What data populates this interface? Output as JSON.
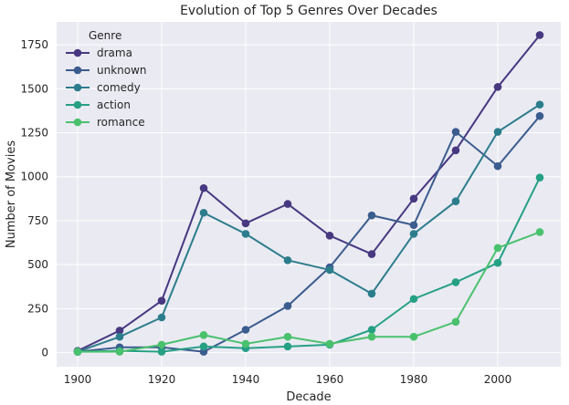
{
  "chart_data": {
    "type": "line",
    "title": "Evolution of Top 5 Genres Over Decades",
    "xlabel": "Decade",
    "ylabel": "Number of Movies",
    "x": [
      1900,
      1910,
      1920,
      1930,
      1940,
      1950,
      1960,
      1970,
      1980,
      1990,
      2000,
      2010
    ],
    "xlim": [
      1895,
      2015
    ],
    "ylim": [
      -80,
      1880
    ],
    "xticks": [
      1900,
      1920,
      1940,
      1960,
      1980,
      2000
    ],
    "yticks": [
      0,
      250,
      500,
      750,
      1000,
      1250,
      1500,
      1750
    ],
    "grid": true,
    "legend": {
      "title": "Genre",
      "placement": "top-left"
    },
    "series": [
      {
        "name": "drama",
        "color": "#473881",
        "values": [
          10,
          125,
          295,
          935,
          735,
          845,
          665,
          560,
          875,
          1150,
          1510,
          1805
        ]
      },
      {
        "name": "unknown",
        "color": "#3b5c8e",
        "values": [
          5,
          30,
          30,
          5,
          130,
          265,
          485,
          780,
          725,
          1255,
          1060,
          1345
        ]
      },
      {
        "name": "comedy",
        "color": "#2c7d8c",
        "values": [
          5,
          90,
          200,
          795,
          675,
          525,
          470,
          335,
          675,
          860,
          1255,
          1410
        ]
      },
      {
        "name": "action",
        "color": "#25a085",
        "values": [
          5,
          10,
          5,
          35,
          25,
          35,
          45,
          130,
          305,
          400,
          510,
          995
        ]
      },
      {
        "name": "romance",
        "color": "#4ac16d",
        "values": [
          5,
          5,
          45,
          100,
          50,
          90,
          50,
          90,
          90,
          175,
          595,
          685
        ]
      }
    ]
  }
}
